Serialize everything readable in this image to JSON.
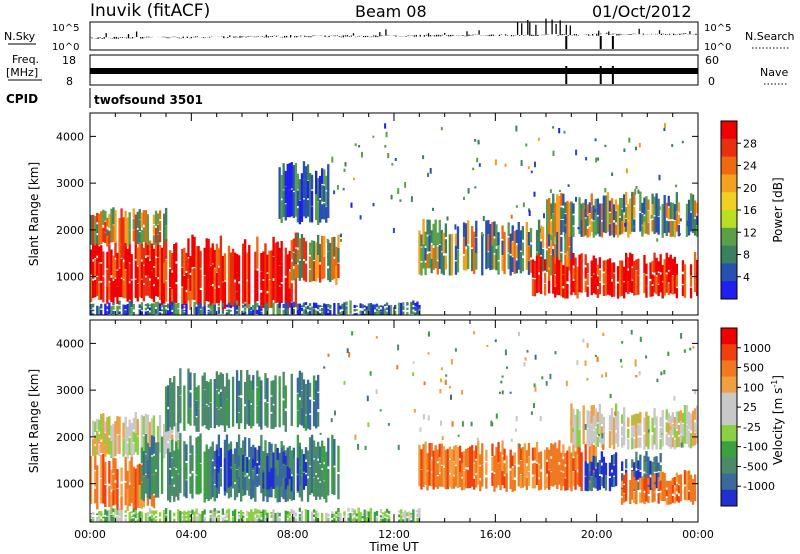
{
  "header": {
    "station": "Inuvik (fitACF)",
    "beam": "Beam 08",
    "date": "01/Oct/2012"
  },
  "strips": {
    "nsky_label": "N.Sky",
    "nsky_left_top": "10^5",
    "nsky_left_bottom": "10^0",
    "nsky_right_top": "10^5",
    "nsky_right_bottom": "10^0",
    "nsearch_label": "N.Search",
    "freq_label": "Freq.",
    "freq_unit": "[MHz]",
    "freq_top": "18",
    "freq_bottom": "8",
    "nave_top": "60",
    "nave_bottom": "0",
    "nave_label": "Nave",
    "cpid_label": "CPID",
    "cpid_value": "twofsound 3501"
  },
  "chart_data": [
    {
      "type": "heatmap",
      "name": "power-panel",
      "ylabel": "Slant Range [km]",
      "xlabel": "",
      "y_ticks": [
        1000,
        2000,
        3000,
        4000
      ],
      "ylim": [
        180,
        4500
      ],
      "x_ticks": [
        "00:00",
        "04:00",
        "08:00",
        "12:00",
        "16:00",
        "20:00",
        "00:00"
      ],
      "xlim_hours": [
        0,
        24
      ],
      "colorbar": {
        "label": "Power [dB]",
        "ticks": [
          "28",
          "24",
          "20",
          "16",
          "12",
          "8",
          "4"
        ],
        "colors": [
          "#1f1ff0",
          "#2850b0",
          "#3c8060",
          "#5aa04a",
          "#b8e020",
          "#f0d020",
          "#f5a020",
          "#ee6a10",
          "#e83010",
          "#f00000"
        ]
      },
      "regions": [
        {
          "t0": 0.0,
          "t1": 2.9,
          "r0": 500,
          "r1": 1700,
          "level": "strong"
        },
        {
          "t0": 0.0,
          "t1": 3.0,
          "r0": 1700,
          "r1": 2400,
          "level": "mixed"
        },
        {
          "t0": 2.8,
          "t1": 8.2,
          "r0": 400,
          "r1": 1700,
          "level": "strong"
        },
        {
          "t0": 8.0,
          "t1": 9.8,
          "r0": 900,
          "r1": 1800,
          "level": "mixed"
        },
        {
          "t0": 7.5,
          "t1": 9.5,
          "r0": 2200,
          "r1": 3300,
          "level": "weak"
        },
        {
          "t0": 0.0,
          "t1": 13.0,
          "r0": 180,
          "r1": 450,
          "level": "weak"
        },
        {
          "t0": 13.0,
          "t1": 19.0,
          "r0": 1100,
          "r1": 2100,
          "level": "mid"
        },
        {
          "t0": 17.5,
          "t1": 24.0,
          "r0": 600,
          "r1": 1400,
          "level": "strong"
        },
        {
          "t0": 18.0,
          "t1": 24.0,
          "r0": 1900,
          "r1": 2700,
          "level": "mid"
        }
      ]
    },
    {
      "type": "heatmap",
      "name": "velocity-panel",
      "ylabel": "Slant Range [km]",
      "xlabel": "Time UT",
      "y_ticks": [
        1000,
        2000,
        3000,
        4000
      ],
      "ylim": [
        180,
        4500
      ],
      "x_ticks": [
        "00:00",
        "04:00",
        "08:00",
        "12:00",
        "16:00",
        "20:00",
        "00:00"
      ],
      "xlim_hours": [
        0,
        24
      ],
      "colorbar": {
        "label": "Velocity [m s",
        "label_sup": "-1",
        "label_end": "]",
        "ticks": [
          "1000",
          "500",
          "100",
          "25",
          "-25",
          "-100",
          "-500",
          "-1000"
        ],
        "colors": [
          "#2030d0",
          "#3a6a9a",
          "#4a8a6a",
          "#3aa040",
          "#8ad040",
          "#c8c8c8",
          "#c8c8c8",
          "#f0a040",
          "#f07820",
          "#f04010",
          "#f00000"
        ]
      },
      "regions": [
        {
          "t0": 0.0,
          "t1": 2.5,
          "r0": 500,
          "r1": 1500,
          "level": "orange"
        },
        {
          "t0": 0.0,
          "t1": 3.5,
          "r0": 1600,
          "r1": 2400,
          "level": "grey"
        },
        {
          "t0": 2.0,
          "t1": 9.8,
          "r0": 700,
          "r1": 1900,
          "level": "green"
        },
        {
          "t0": 5.0,
          "t1": 8.5,
          "r0": 900,
          "r1": 1700,
          "level": "blue"
        },
        {
          "t0": 3.0,
          "t1": 9.0,
          "r0": 2200,
          "r1": 3300,
          "level": "green"
        },
        {
          "t0": 0.0,
          "t1": 13.0,
          "r0": 180,
          "r1": 450,
          "level": "ltgreen"
        },
        {
          "t0": 13.0,
          "t1": 20.0,
          "r0": 900,
          "r1": 1800,
          "level": "orange"
        },
        {
          "t0": 19.5,
          "t1": 22.5,
          "r0": 900,
          "r1": 1600,
          "level": "blue"
        },
        {
          "t0": 21.0,
          "t1": 24.0,
          "r0": 600,
          "r1": 1200,
          "level": "orange"
        },
        {
          "t0": 19.0,
          "t1": 24.0,
          "r0": 1800,
          "r1": 2600,
          "level": "grey"
        }
      ]
    }
  ]
}
